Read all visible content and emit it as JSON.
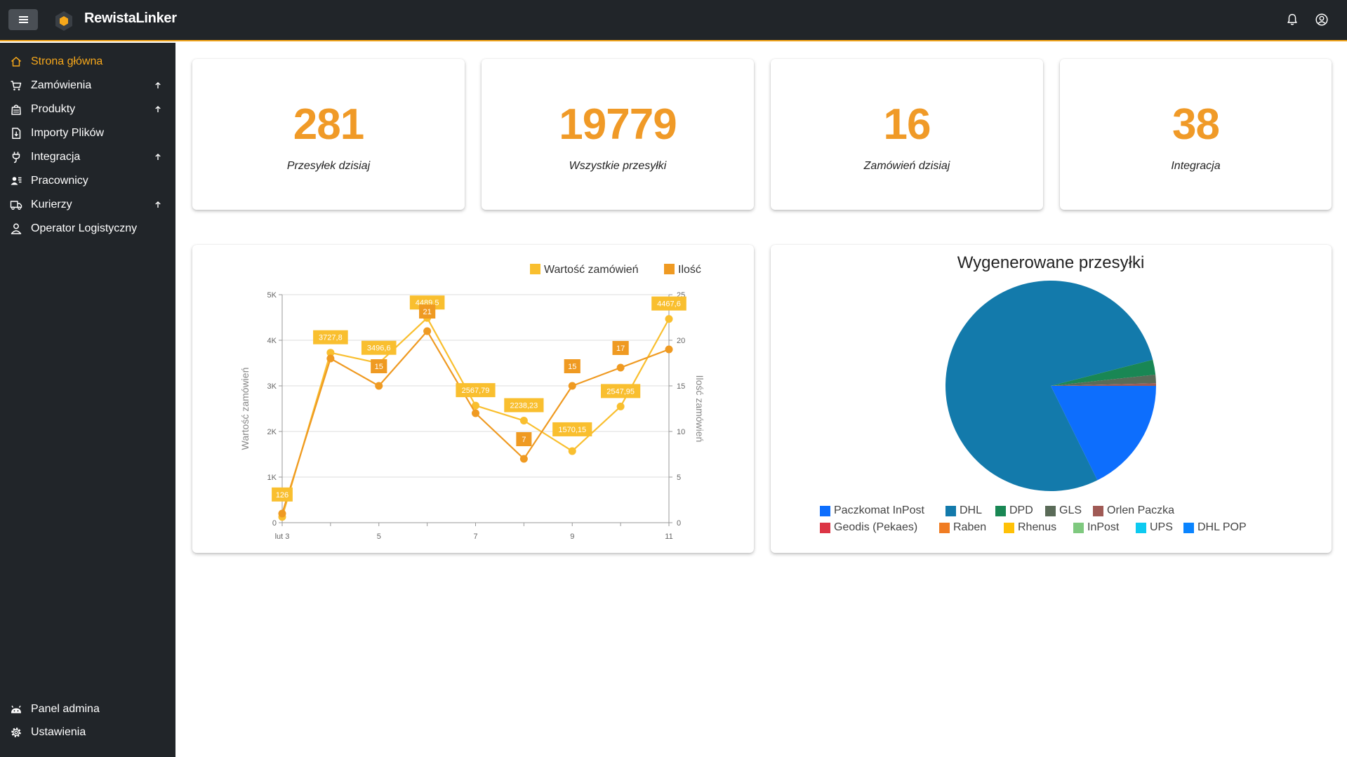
{
  "app": {
    "brand": "RewistaLinker"
  },
  "sidebar": {
    "items": [
      {
        "label": "Strona główna",
        "icon": "home-icon",
        "active": true,
        "expandable": false
      },
      {
        "label": "Zamówienia",
        "icon": "cart-icon",
        "active": false,
        "expandable": true
      },
      {
        "label": "Produkty",
        "icon": "bag-icon",
        "active": false,
        "expandable": true
      },
      {
        "label": "Importy Plików",
        "icon": "file-import-icon",
        "active": false,
        "expandable": false
      },
      {
        "label": "Integracja",
        "icon": "plug-icon",
        "active": false,
        "expandable": true
      },
      {
        "label": "Pracownicy",
        "icon": "users-icon",
        "active": false,
        "expandable": false
      },
      {
        "label": "Kurierzy",
        "icon": "truck-icon",
        "active": false,
        "expandable": true
      },
      {
        "label": "Operator Logistyczny",
        "icon": "person-icon",
        "active": false,
        "expandable": false
      }
    ],
    "bottom_items": [
      {
        "label": "Panel admina",
        "icon": "android-icon"
      },
      {
        "label": "Ustawienia",
        "icon": "gear-icon"
      }
    ]
  },
  "stats": [
    {
      "value": "281",
      "label": "Przesyłek dzisiaj"
    },
    {
      "value": "19779",
      "label": "Wszystkie przesyłki"
    },
    {
      "value": "16",
      "label": "Zamówień dzisiaj"
    },
    {
      "value": "38",
      "label": "Integracja"
    }
  ],
  "colors": {
    "accent": "#f7a81b",
    "stat_value": "#f09a27",
    "series_value": "#f9bf2f",
    "series_qty": "#ef9a22",
    "topbar": "#212529"
  },
  "chart_data": [
    {
      "type": "line",
      "title": "",
      "legend": [
        "Wartość zamówień",
        "Ilość"
      ],
      "legend_position": "top-right",
      "x": [
        "lut 3",
        "4",
        "5",
        "6",
        "7",
        "8",
        "9",
        "10",
        "11"
      ],
      "x_tick_labels": [
        "lut 3",
        "5",
        "7",
        "9",
        "11"
      ],
      "ylabel": "Wartość zamówień",
      "y2label": "Ilość zamówień",
      "ylim": [
        0,
        5000
      ],
      "y_tick_labels": [
        "0",
        "1K",
        "2K",
        "3K",
        "4K",
        "5K"
      ],
      "y2lim": [
        0,
        25
      ],
      "y2_tick_labels": [
        "0",
        "5",
        "10",
        "15",
        "20",
        "25"
      ],
      "grid": true,
      "series": [
        {
          "name": "Wartość zamówień",
          "axis": "left",
          "values": [
            126,
            3727.8,
            3496.6,
            4489.5,
            2567.79,
            2238.23,
            1570.15,
            2547.95,
            4467.6
          ],
          "labels": [
            "126",
            "3727,8",
            "3496,6",
            "4489,5",
            "2567,79",
            "2238,23",
            "1570,15",
            "2547,95",
            "4467,6"
          ]
        },
        {
          "name": "Ilość",
          "axis": "right",
          "values": [
            1,
            18,
            15,
            21,
            12,
            7,
            15,
            17,
            19
          ],
          "labels": [
            "",
            "",
            "15",
            "21",
            "",
            "7",
            "15",
            "17",
            ""
          ]
        }
      ]
    },
    {
      "type": "pie",
      "title": "Wygenerowane przesyłki",
      "legend_position": "bottom",
      "slices": [
        {
          "label": "Paczkomat InPost",
          "value": 17.7,
          "color": "#0d6efd"
        },
        {
          "label": "DHL",
          "value": 78.3,
          "color": "#137aab"
        },
        {
          "label": "DPD",
          "value": 2.3,
          "color": "#198754"
        },
        {
          "label": "GLS",
          "value": 1.3,
          "color": "#5a6b58"
        },
        {
          "label": "Orlen Paczka",
          "value": 0.4,
          "color": "#a05a55"
        },
        {
          "label": "Geodis (Pekaes)",
          "value": 0,
          "color": "#dc3545"
        },
        {
          "label": "Raben",
          "value": 0,
          "color": "#f07c23"
        },
        {
          "label": "Rhenus",
          "value": 0,
          "color": "#ffc107"
        },
        {
          "label": "InPost",
          "value": 0,
          "color": "#7fc97f"
        },
        {
          "label": "UPS",
          "value": 0,
          "color": "#0dcaf0"
        },
        {
          "label": "DHL POP",
          "value": 0,
          "color": "#0a84ff"
        }
      ]
    }
  ]
}
